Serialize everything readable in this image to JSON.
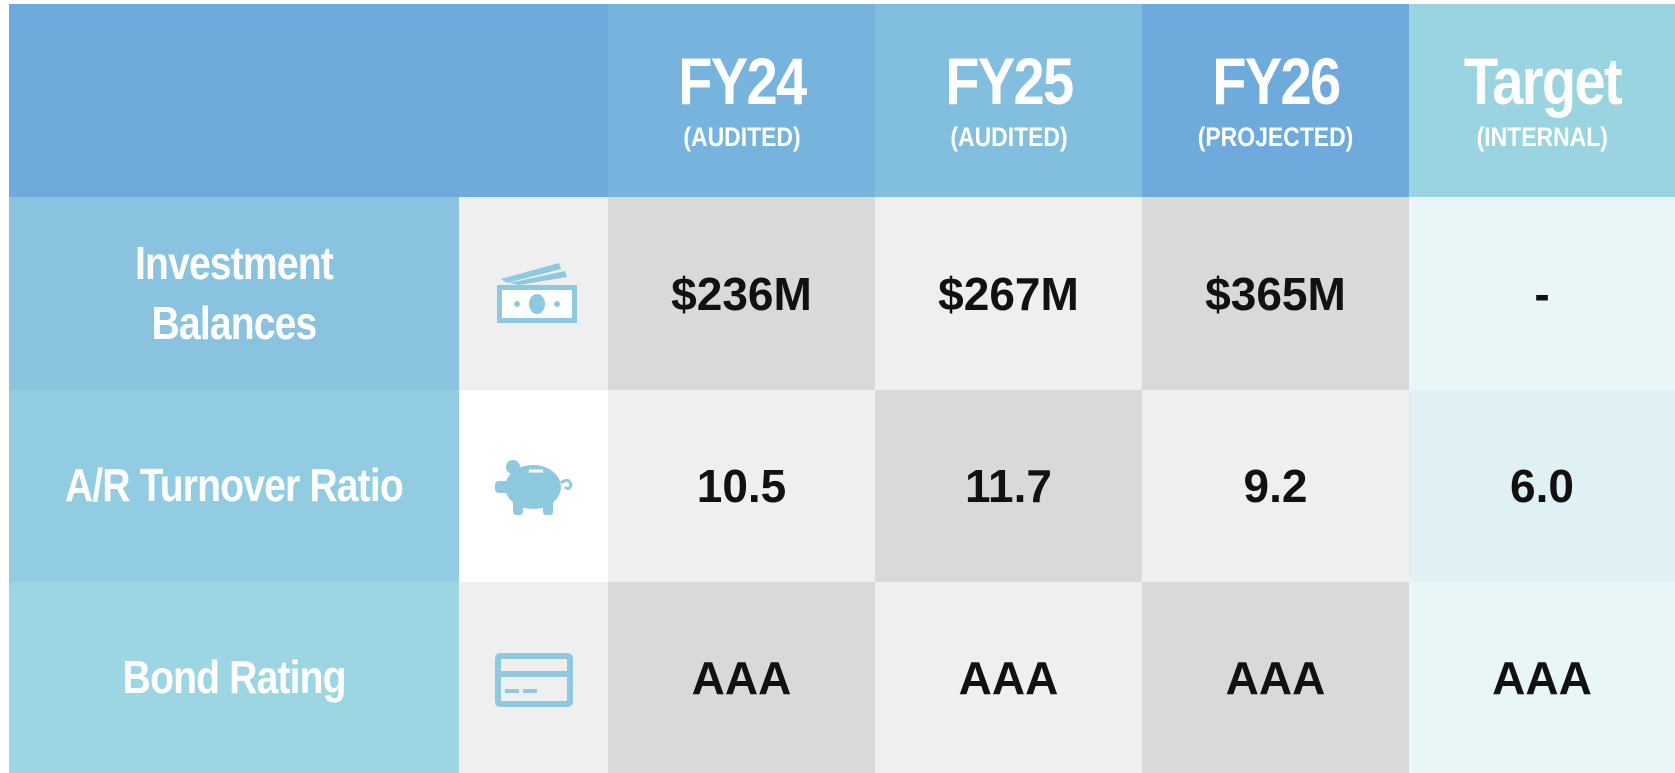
{
  "header": {
    "columns": [
      {
        "title": "FY24",
        "subtitle": "(AUDITED)"
      },
      {
        "title": "FY25",
        "subtitle": "(AUDITED)"
      },
      {
        "title": "FY26",
        "subtitle": "(PROJECTED)"
      },
      {
        "title": "Target",
        "subtitle": "(INTERNAL)"
      }
    ]
  },
  "rows": [
    {
      "label": "Investment Balances",
      "values": [
        "$236M",
        "$267M",
        "$365M",
        "-"
      ]
    },
    {
      "label": "A/R Turnover Ratio",
      "values": [
        "10.5",
        "11.7",
        "9.2",
        "6.0"
      ]
    },
    {
      "label": "Bond Rating",
      "values": [
        "AAA",
        "AAA",
        "AAA",
        "AAA"
      ]
    }
  ]
}
